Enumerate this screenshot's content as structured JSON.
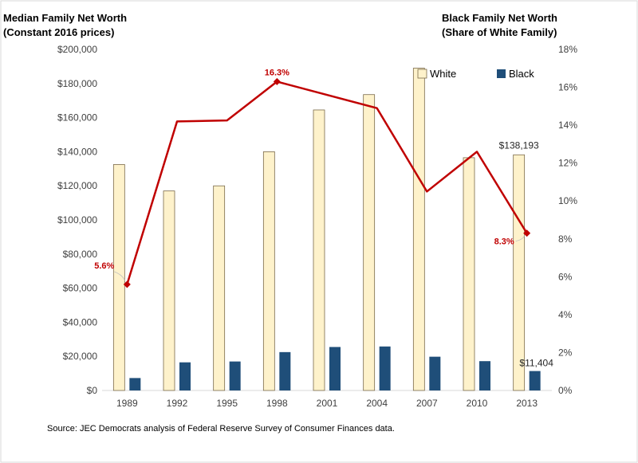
{
  "colors": {
    "white_fill": "#fef2cb",
    "white_stroke": "#7a6a4a",
    "black_fill": "#1f4e79",
    "line": "#c00000",
    "grid": "#d9d9d9"
  },
  "left_title": [
    "Median Family Net Worth",
    "(Constant 2016 prices)"
  ],
  "right_title": [
    "Black Family Net Worth",
    "(Share of White Family)"
  ],
  "source": "Source: JEC Democrats analysis of Federal Reserve Survey of Consumer Finances data.",
  "chart_data": {
    "type": "bar",
    "categories": [
      "1989",
      "1992",
      "1995",
      "1998",
      "2001",
      "2004",
      "2007",
      "2010",
      "2013"
    ],
    "series": [
      {
        "name": "White",
        "axis": "left",
        "type": "bar",
        "values": [
          132500,
          117000,
          120000,
          140000,
          164500,
          173500,
          189000,
          136500,
          138193
        ]
      },
      {
        "name": "Black",
        "axis": "left",
        "type": "bar",
        "values": [
          7300,
          16500,
          17000,
          22500,
          25500,
          25800,
          19800,
          17200,
          11404
        ]
      },
      {
        "axis": "right",
        "type": "line",
        "values": [
          5.6,
          14.2,
          14.25,
          16.3,
          15.6,
          14.9,
          10.5,
          12.6,
          8.3
        ]
      }
    ],
    "y_left": {
      "min": 0,
      "max": 200000,
      "step": 20000,
      "ticks": [
        "$0",
        "$20,000",
        "$40,000",
        "$60,000",
        "$80,000",
        "$100,000",
        "$120,000",
        "$140,000",
        "$160,000",
        "$180,000",
        "$200,000"
      ]
    },
    "y_right": {
      "min": 0,
      "max": 18,
      "step": 2,
      "ticks": [
        "0%",
        "2%",
        "4%",
        "6%",
        "8%",
        "10%",
        "12%",
        "14%",
        "16%",
        "18%"
      ]
    },
    "data_labels": {
      "white_2013": "$138,193",
      "black_2013": "$11,404",
      "ratio_1989": "5.6%",
      "ratio_1998": "16.3%",
      "ratio_2013": "8.3%"
    },
    "legend": {
      "position": "top-right",
      "items": [
        "White",
        "Black"
      ]
    },
    "grid": false
  }
}
